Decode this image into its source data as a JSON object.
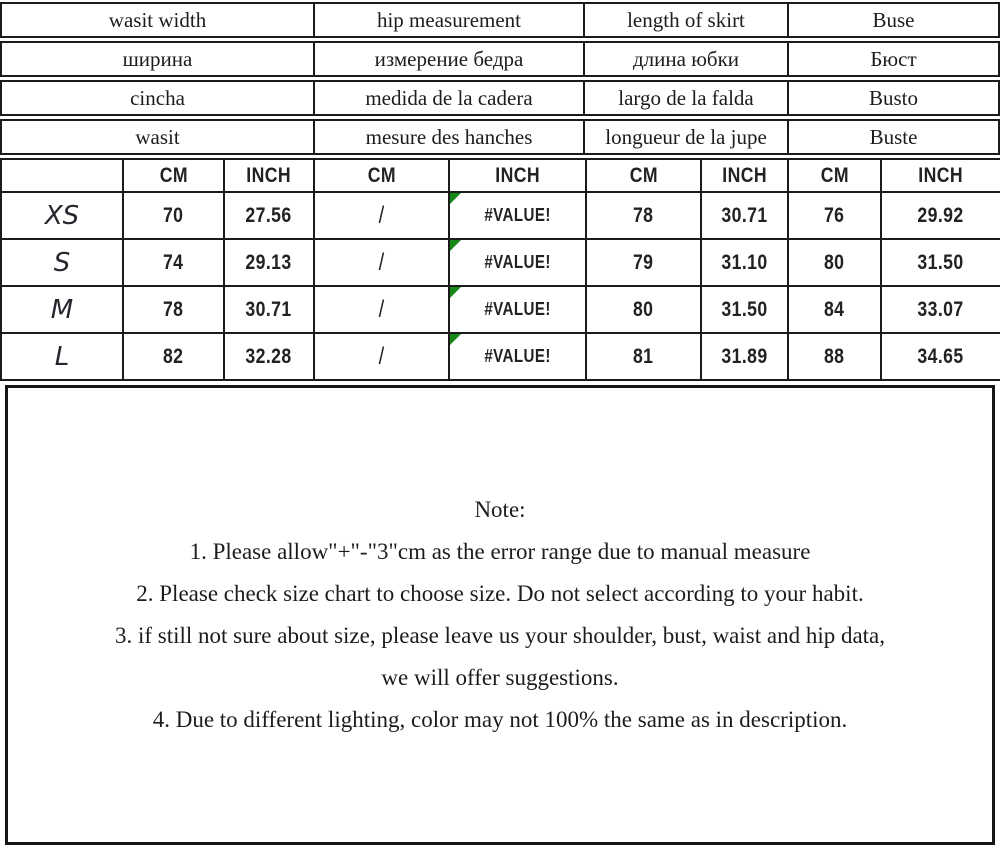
{
  "colors": {
    "border": "#1b1b1b",
    "text": "#1c1c1c",
    "error_triangle": "#178717",
    "background": "#ffffff"
  },
  "language_rows": [
    [
      "wasit width",
      "hip measurement",
      "length of skirt",
      "Buse"
    ],
    [
      "ширина",
      "измерение бедра",
      "длина юбки",
      "Бюст"
    ],
    [
      "cincha",
      "medida de la cadera",
      "largo de la falda",
      "Busto"
    ],
    [
      "wasit",
      "mesure des hanches",
      "longueur de la jupe",
      "Buste"
    ]
  ],
  "table": {
    "unit_headers": [
      "CM",
      "INCH",
      "CM",
      "INCH",
      "CM",
      "INCH",
      "CM",
      "INCH"
    ],
    "error_text": "#VALUE!",
    "rows": [
      {
        "size": "XS",
        "values": [
          "70",
          "27.56",
          "/",
          "#VALUE!",
          "78",
          "30.71",
          "76",
          "29.92"
        ]
      },
      {
        "size": "S",
        "values": [
          "74",
          "29.13",
          "/",
          "#VALUE!",
          "79",
          "31.10",
          "80",
          "31.50"
        ]
      },
      {
        "size": "M",
        "values": [
          "78",
          "30.71",
          "/",
          "#VALUE!",
          "80",
          "31.50",
          "84",
          "33.07"
        ]
      },
      {
        "size": "L",
        "values": [
          "82",
          "32.28",
          "/",
          "#VALUE!",
          "81",
          "31.89",
          "88",
          "34.65"
        ]
      }
    ]
  },
  "note": {
    "title": "Note:",
    "lines": [
      "1. Please allow\"+\"-\"3\"cm as the error range due to manual measure",
      "2. Please check size chart to choose size. Do not select according to your habit.",
      "3. if still not sure about size, please leave us your shoulder, bust, waist and hip data,",
      "we will offer suggestions.",
      "4. Due to different lighting, color may not 100% the same as in description."
    ]
  }
}
